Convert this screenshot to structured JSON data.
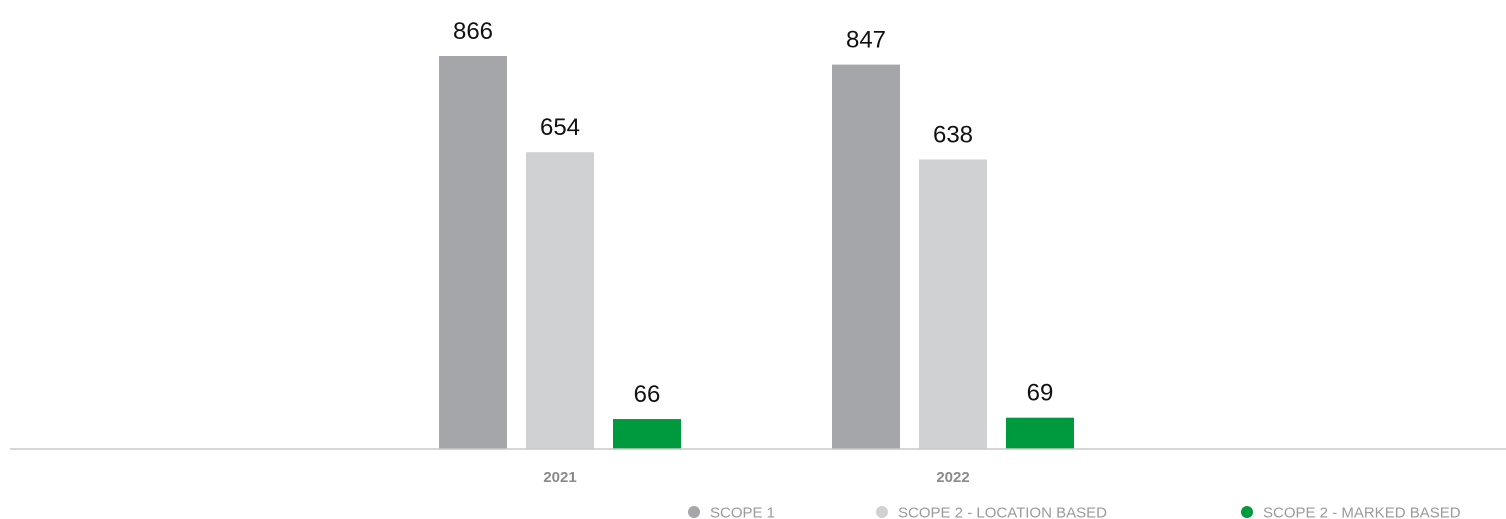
{
  "chart_data": {
    "type": "bar",
    "categories": [
      "2021",
      "2022"
    ],
    "series": [
      {
        "name": "SCOPE 1",
        "values": [
          866,
          847
        ],
        "color": "#a5a6a9"
      },
      {
        "name": "SCOPE 2 - LOCATION BASED",
        "values": [
          654,
          638
        ],
        "color": "#d0d1d3"
      },
      {
        "name": "SCOPE 2 - MARKED BASED",
        "values": [
          66,
          69
        ],
        "color": "#009a3e"
      }
    ],
    "title": "",
    "xlabel": "",
    "ylabel": "",
    "ylim": [
      0,
      866
    ],
    "grid": false,
    "data_labels": true,
    "legend": "bottom-right"
  }
}
